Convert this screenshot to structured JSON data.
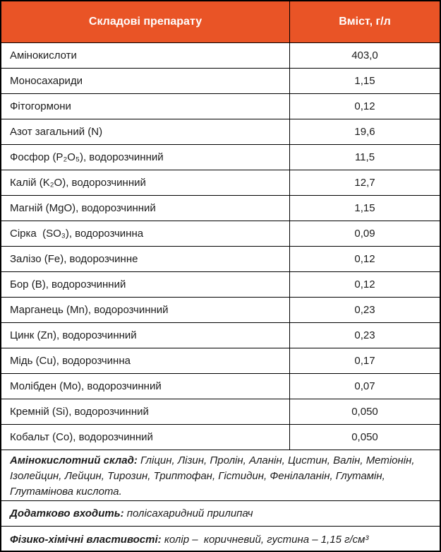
{
  "table": {
    "header": {
      "component_col": "Складові препарату",
      "content_col": "Вміст, г/л"
    },
    "rows": [
      {
        "component": "Амінокислоти",
        "value": "403,0"
      },
      {
        "component": "Моносахариди",
        "value": "1,15"
      },
      {
        "component": "Фітогормони",
        "value": "0,12"
      },
      {
        "component": "Азот загальний (N)",
        "value": "19,6"
      },
      {
        "component": "Фосфор (P₂O₅), водорозчинний",
        "value": "11,5"
      },
      {
        "component": "Калій (K₂O), водорозчинний",
        "value": "12,7"
      },
      {
        "component": "Магній (MgO), водорозчинний",
        "value": "1,15"
      },
      {
        "component": "Сірка  (SO₃), водорозчинна",
        "value": "0,09"
      },
      {
        "component": "Залізо (Fe), водорозчинне",
        "value": "0,12"
      },
      {
        "component": "Бор (B), водорозчинний",
        "value": "0,12"
      },
      {
        "component": "Марганець (Mn), водорозчинний",
        "value": "0,23"
      },
      {
        "component": "Цинк (Zn), водорозчинний",
        "value": "0,23"
      },
      {
        "component": "Мідь (Cu), водорозчинна",
        "value": "0,17"
      },
      {
        "component": "Молібден (Mo), водорозчинний",
        "value": "0,07"
      },
      {
        "component": "Кремній (Si), водорозчинний",
        "value": "0,050"
      },
      {
        "component": "Кобальт (Co), водорозчинний",
        "value": "0,050"
      }
    ],
    "footnotes": [
      {
        "label": "Амінокислотний склад:",
        "text": "Гліцин, Лізин, Пролін, Аланін, Цистин, Валін, Метіонін, Ізолейцин, Лейцин, Тирозин, Триптофан, Гістидин, Фенілаланін, Глутамін, Глутамінова кислота."
      },
      {
        "label": "Додатково входить:",
        "text": "полісахаридний прилипач"
      },
      {
        "label": "Фізико-хімічні властивості:",
        "text": "колір –  коричневий, густина – 1,15 г/см³"
      }
    ],
    "colors": {
      "header_bg": "#E95426",
      "header_text": "#FFFFFF",
      "border": "#000000",
      "body_bg": "#FFFFFF",
      "body_text": "#1C1C1C"
    }
  }
}
